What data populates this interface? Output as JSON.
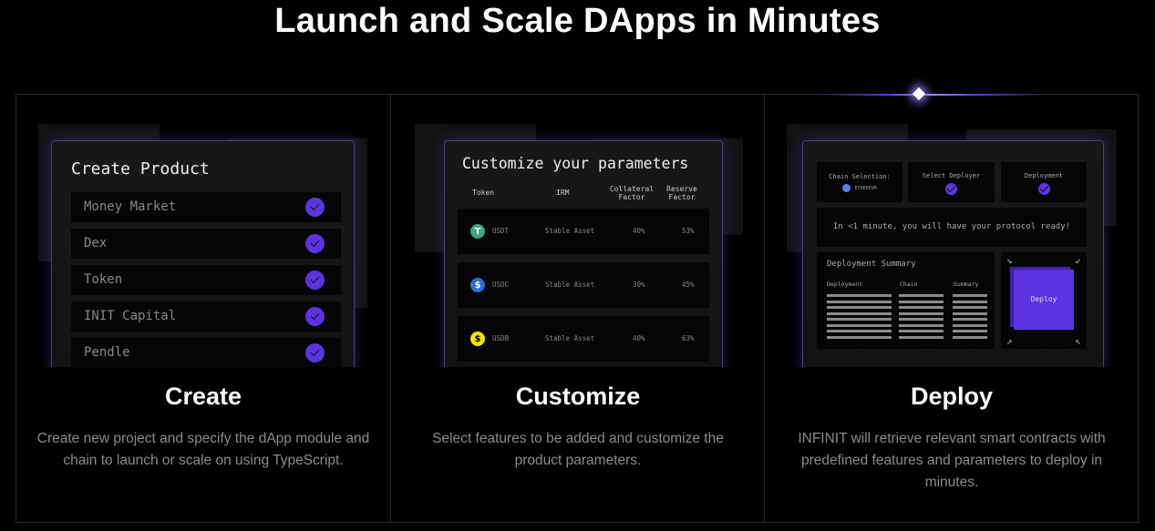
{
  "page": {
    "title": "Launch and Scale DApps in Minutes"
  },
  "colors": {
    "accent": "#5b34e0",
    "background": "#000000"
  },
  "steps": [
    {
      "title": "Create",
      "description": "Create new project and specify the dApp module and chain to launch or scale on using TypeScript.",
      "panel": {
        "title": "Create Product",
        "items": [
          "Money Market",
          "Dex",
          "Token",
          "INIT Capital",
          "Pendle"
        ],
        "item_icon": "check-circle-icon"
      }
    },
    {
      "title": "Customize",
      "description": "Select features to be added and customize the product parameters.",
      "panel": {
        "title": "Customize your parameters",
        "headers": [
          "Token",
          "IRM",
          "Collateral Factor",
          "Reserve Factor"
        ],
        "rows": [
          {
            "token": "USDT",
            "irm": "Stable Asset",
            "collateral": "40%",
            "reserve": "53%",
            "icon": "tether-icon",
            "color": "#3fa587"
          },
          {
            "token": "USDC",
            "irm": "Stable Asset",
            "collateral": "30%",
            "reserve": "45%",
            "icon": "usdc-icon",
            "color": "#2b6fd6"
          },
          {
            "token": "USDB",
            "irm": "Stable Asset",
            "collateral": "40%",
            "reserve": "63%",
            "icon": "usdb-icon",
            "color": "#f5e400"
          }
        ]
      }
    },
    {
      "title": "Deploy",
      "description": "INFINIT will retrieve relevant smart contracts with predefined features and parameters to deploy in minutes.",
      "panel": {
        "chain_label": "Chain Selection:",
        "chain_value": "ETHEREUM",
        "deployer_label": "Select Deployer",
        "deployment_label": "Deployment",
        "message": "In <1 minute, you will have your protocol ready!",
        "summary_title": "Deployment Summary",
        "summary_headers": [
          "Deployment",
          "Chain",
          "Summary"
        ],
        "deploy_button": "Deploy"
      }
    }
  ]
}
